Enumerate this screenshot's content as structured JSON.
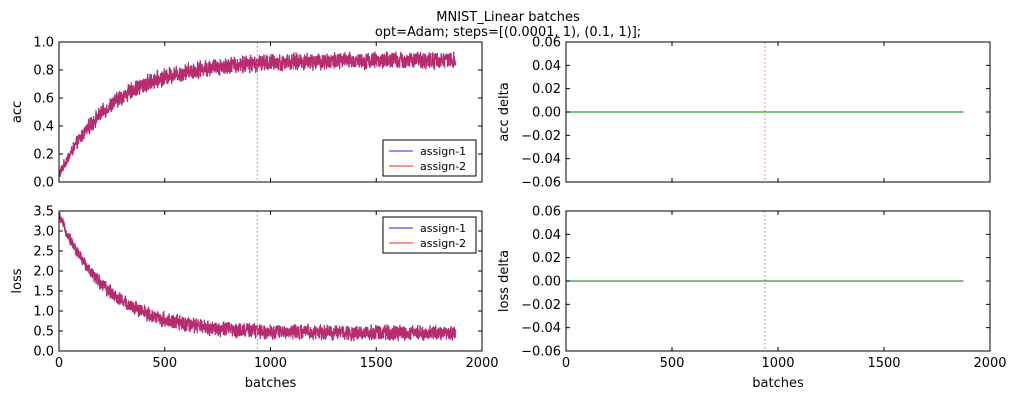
{
  "figure": {
    "title_line1": "MNIST_Linear batches",
    "title_line2": "opt=Adam; steps=[(0.0001, 1), (0.1, 1)];"
  },
  "colors": {
    "assign1": "#4d4dff",
    "assign2": "#ff4d4d",
    "overlap": "#c0275f",
    "delta": "#2ca02c",
    "vline": "#e377c2"
  },
  "chart_data": [
    {
      "id": "acc",
      "type": "line",
      "ylabel": "acc",
      "xlabel": "",
      "xlim": [
        0,
        2000
      ],
      "ylim": [
        0.0,
        1.0
      ],
      "xticks": [
        "0",
        "500",
        "1000",
        "1500",
        "2000"
      ],
      "yticks": [
        "0.0",
        "0.2",
        "0.4",
        "0.6",
        "0.8",
        "1.0"
      ],
      "show_xticklabels": false,
      "legend": {
        "placement": "lower-right",
        "entries": [
          "assign-1",
          "assign-2"
        ]
      },
      "vline_x": 938,
      "n_points": 1875,
      "series": [
        {
          "name": "assign-1",
          "start": 0.05,
          "plateau": 0.87,
          "tau": 260,
          "noise": 0.055
        },
        {
          "name": "assign-2",
          "start": 0.05,
          "plateau": 0.87,
          "tau": 260,
          "noise": 0.055
        }
      ]
    },
    {
      "id": "acc_delta",
      "type": "line",
      "ylabel": "acc delta",
      "xlabel": "",
      "xlim": [
        0,
        2000
      ],
      "ylim": [
        -0.06,
        0.06
      ],
      "xticks": [
        "0",
        "500",
        "1000",
        "1500",
        "2000"
      ],
      "yticks": [
        "−0.06",
        "−0.04",
        "−0.02",
        "0.00",
        "0.02",
        "0.04",
        "0.06"
      ],
      "show_xticklabels": false,
      "vline_x": 938,
      "series": [
        {
          "x": [
            0,
            1875
          ],
          "y": [
            0.0,
            0.0
          ]
        }
      ]
    },
    {
      "id": "loss",
      "type": "line",
      "ylabel": "loss",
      "xlabel": "batches",
      "xlim": [
        0,
        2000
      ],
      "ylim": [
        0.0,
        3.5
      ],
      "xticks": [
        "0",
        "500",
        "1000",
        "1500",
        "2000"
      ],
      "yticks": [
        "0.0",
        "0.5",
        "1.0",
        "1.5",
        "2.0",
        "2.5",
        "3.0",
        "3.5"
      ],
      "show_xticklabels": true,
      "legend": {
        "placement": "upper-right",
        "entries": [
          "assign-1",
          "assign-2"
        ]
      },
      "vline_x": 938,
      "n_points": 1875,
      "series": [
        {
          "name": "assign-1",
          "start": 3.4,
          "plateau": 0.45,
          "tau": 230,
          "noise": 0.17
        },
        {
          "name": "assign-2",
          "start": 3.4,
          "plateau": 0.45,
          "tau": 230,
          "noise": 0.17
        }
      ]
    },
    {
      "id": "loss_delta",
      "type": "line",
      "ylabel": "loss delta",
      "xlabel": "batches",
      "xlim": [
        0,
        2000
      ],
      "ylim": [
        -0.06,
        0.06
      ],
      "xticks": [
        "0",
        "500",
        "1000",
        "1500",
        "2000"
      ],
      "yticks": [
        "−0.06",
        "−0.04",
        "−0.02",
        "0.00",
        "0.02",
        "0.04",
        "0.06"
      ],
      "show_xticklabels": true,
      "vline_x": 938,
      "series": [
        {
          "x": [
            0,
            1875
          ],
          "y": [
            0.0,
            0.0
          ]
        }
      ]
    }
  ]
}
